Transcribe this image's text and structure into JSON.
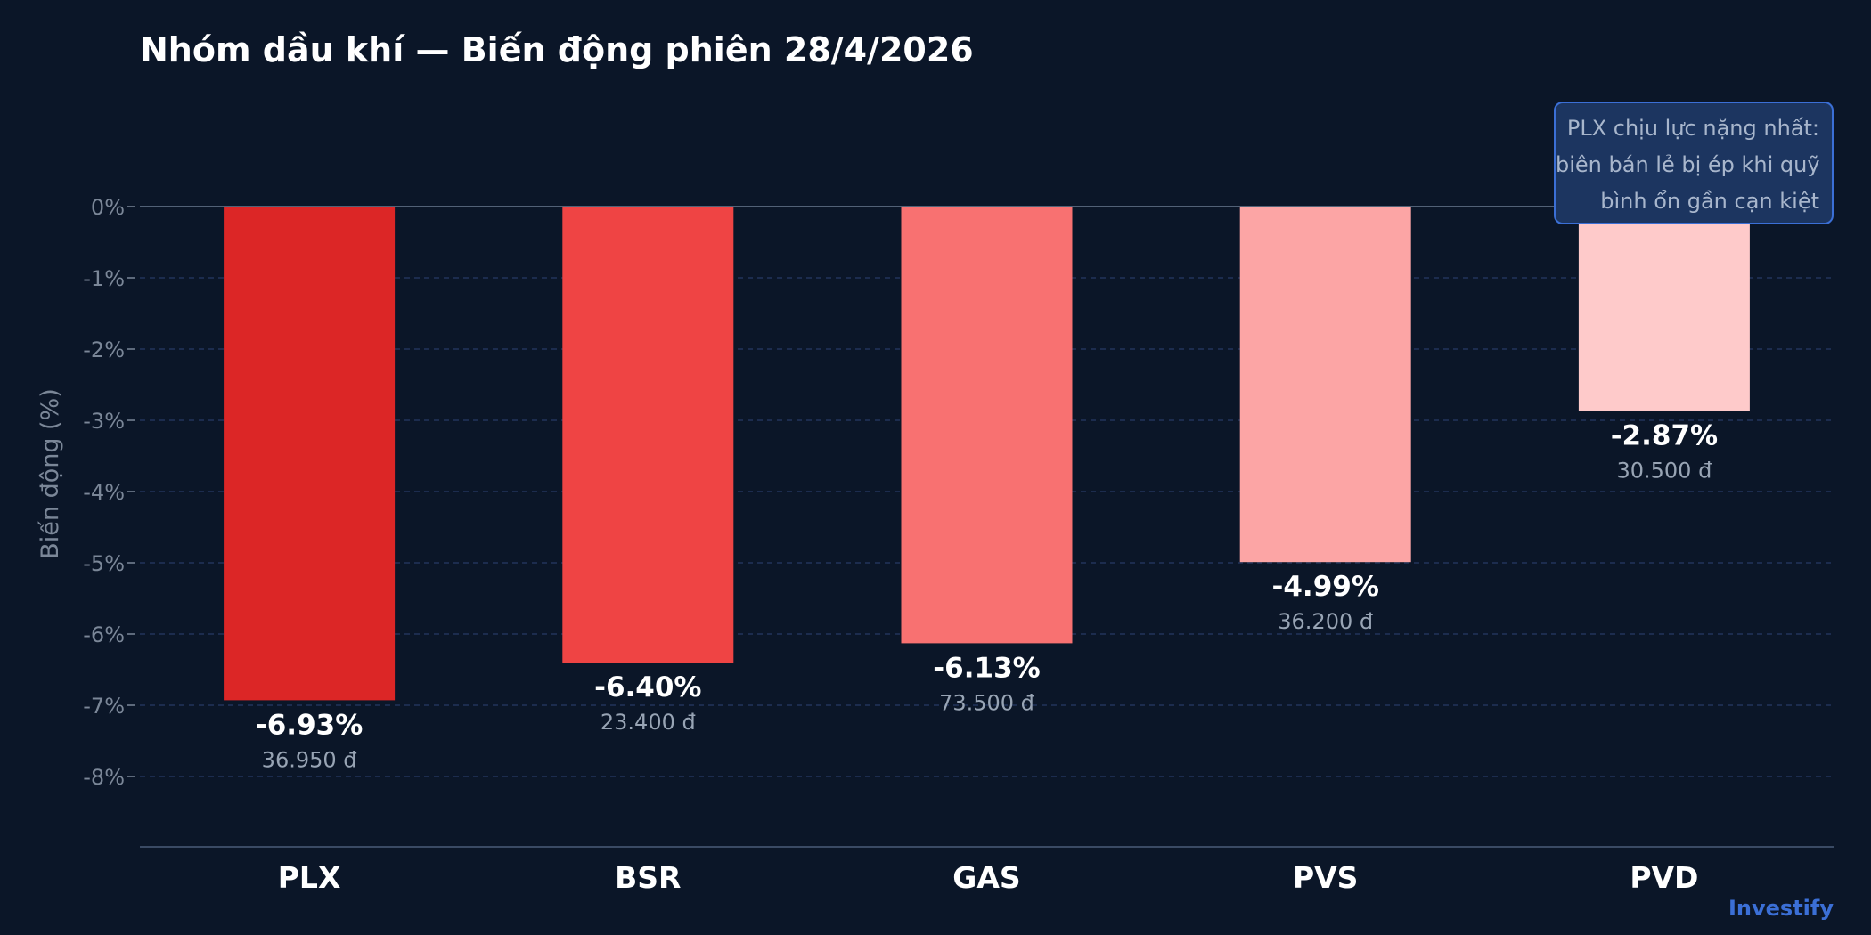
{
  "chart_data": {
    "type": "bar",
    "title": "Nhóm dầu khí — Biến động phiên 28/4/2026",
    "xlabel": "",
    "ylabel": "Biến động (%)",
    "ylim": [
      -9,
      0
    ],
    "grid": true,
    "y_ticks": [
      0,
      -1,
      -2,
      -3,
      -4,
      -5,
      -6,
      -7,
      -8
    ],
    "y_tick_labels": [
      "0%",
      "-1%",
      "-2%",
      "-3%",
      "-4%",
      "-5%",
      "-6%",
      "-7%",
      "-8%"
    ],
    "categories": [
      "PLX",
      "BSR",
      "GAS",
      "PVS",
      "PVD"
    ],
    "values": [
      -6.93,
      -6.4,
      -6.13,
      -4.99,
      -2.87
    ],
    "value_labels": [
      "-6.93%",
      "-6.40%",
      "-6.13%",
      "-4.99%",
      "-2.87%"
    ],
    "prices": [
      "36.950 đ",
      "23.400 đ",
      "73.500 đ",
      "36.200 đ",
      "30.500 đ"
    ],
    "bar_colors": [
      "#dc2626",
      "#ef4444",
      "#f87171",
      "#fca5a5",
      "#fecaca"
    ],
    "annotation": {
      "lines": [
        "PLX chịu lực nặng nhất:",
        "biên bán lẻ bị ép khi quỹ",
        "bình ổn gần cạn kiệt"
      ]
    }
  },
  "brand": "Investify",
  "colors": {
    "background": "#0b1628",
    "grid": "#22345a",
    "baseline": "#6b7a90",
    "tick_text": "#7b8798",
    "value_text": "#ffffff",
    "price_text": "#98a4b4",
    "annotation_bg": "#1c3560",
    "annotation_border": "#3b6fd6",
    "brand": "#3b6fd6"
  }
}
